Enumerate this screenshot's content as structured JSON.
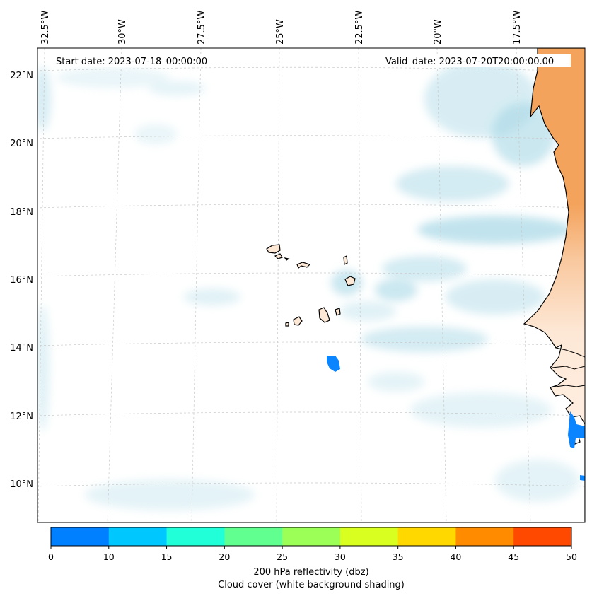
{
  "header": {
    "start_date": "Start date: 2023-07-18_00:00:00",
    "valid_date": "Valid_date: 2023-07-20T20:00:00.00"
  },
  "axes": {
    "lon_labels": [
      "32.5°W",
      "30°W",
      "27.5°W",
      "25°W",
      "22.5°W",
      "20°W",
      "17.5°W"
    ],
    "lat_labels": [
      "22°N",
      "20°N",
      "18°N",
      "16°N",
      "14°N",
      "12°N",
      "10°N"
    ]
  },
  "colorbar": {
    "ticks": [
      "0",
      "10",
      "15",
      "20",
      "25",
      "30",
      "35",
      "40",
      "45",
      "50"
    ],
    "colors": [
      "#0080ff",
      "#00c8ff",
      "#20ffd8",
      "#60ff90",
      "#9cff58",
      "#d8ff20",
      "#ffd800",
      "#ff8c00",
      "#ff4800"
    ],
    "title_line1": "200 hPa reflectivity (dbz)",
    "title_line2": "Cloud cover (white background shading)"
  },
  "colors": {
    "land_warm": "#f4a35c",
    "land_light": "#fde3cc",
    "cloud": "#a8d8e6",
    "reflectivity_low": "#0a84ff"
  }
}
